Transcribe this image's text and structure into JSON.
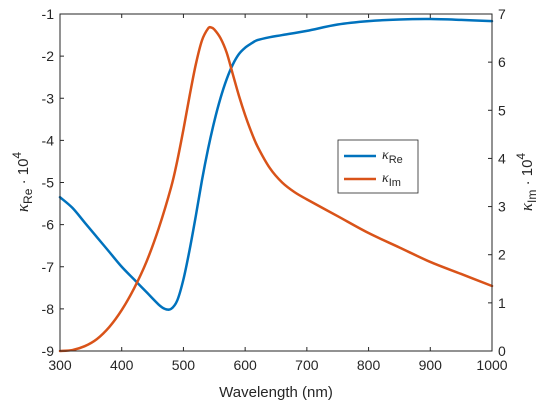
{
  "chart_data": {
    "type": "line",
    "xlabel": "Wavelength (nm)",
    "xlim": [
      300,
      1000
    ],
    "xticks": [
      300,
      400,
      500,
      600,
      700,
      800,
      900,
      1000
    ],
    "ylabel_left": {
      "base": "κ",
      "sub": "Re",
      "suffix": " · 10",
      "sup": "4"
    },
    "ylim_left": [
      -9,
      -1
    ],
    "yticks_left": [
      -9,
      -8,
      -7,
      -6,
      -5,
      -4,
      -3,
      -2,
      -1
    ],
    "ylabel_right": {
      "base": "κ",
      "sub": "Im",
      "suffix": " · 10",
      "sup": "4"
    },
    "ylim_right": [
      0,
      7
    ],
    "yticks_right": [
      0,
      1,
      2,
      3,
      4,
      5,
      6,
      7
    ],
    "grid": false,
    "legend_position": "center-right",
    "series": [
      {
        "name": "κRe",
        "legend_base": "κ",
        "legend_sub": "Re",
        "axis": "left",
        "color": "#0072BD",
        "x": [
          300,
          320,
          340,
          360,
          380,
          400,
          420,
          440,
          460,
          470,
          480,
          490,
          500,
          510,
          520,
          530,
          540,
          550,
          560,
          570,
          580,
          590,
          600,
          610,
          620,
          640,
          660,
          700,
          750,
          800,
          850,
          900,
          950,
          1000
        ],
        "y": [
          -5.35,
          -5.6,
          -5.95,
          -6.3,
          -6.65,
          -7.0,
          -7.3,
          -7.6,
          -7.9,
          -8.0,
          -8.0,
          -7.8,
          -7.3,
          -6.6,
          -5.8,
          -4.95,
          -4.2,
          -3.55,
          -3.0,
          -2.55,
          -2.2,
          -1.95,
          -1.8,
          -1.7,
          -1.62,
          -1.55,
          -1.5,
          -1.4,
          -1.25,
          -1.17,
          -1.13,
          -1.12,
          -1.14,
          -1.17
        ]
      },
      {
        "name": "κIm",
        "legend_base": "κ",
        "legend_sub": "Im",
        "axis": "right",
        "color": "#D95319",
        "x": [
          300,
          320,
          340,
          360,
          380,
          400,
          420,
          440,
          460,
          480,
          490,
          500,
          510,
          520,
          530,
          540,
          545,
          550,
          560,
          570,
          580,
          590,
          600,
          610,
          620,
          640,
          660,
          680,
          700,
          750,
          800,
          850,
          900,
          950,
          1000
        ],
        "y": [
          0.0,
          0.02,
          0.1,
          0.25,
          0.5,
          0.85,
          1.3,
          1.85,
          2.55,
          3.4,
          3.95,
          4.6,
          5.3,
          5.95,
          6.45,
          6.7,
          6.72,
          6.68,
          6.5,
          6.2,
          5.75,
          5.3,
          4.9,
          4.55,
          4.25,
          3.8,
          3.5,
          3.3,
          3.15,
          2.8,
          2.45,
          2.15,
          1.85,
          1.6,
          1.35
        ]
      }
    ]
  }
}
